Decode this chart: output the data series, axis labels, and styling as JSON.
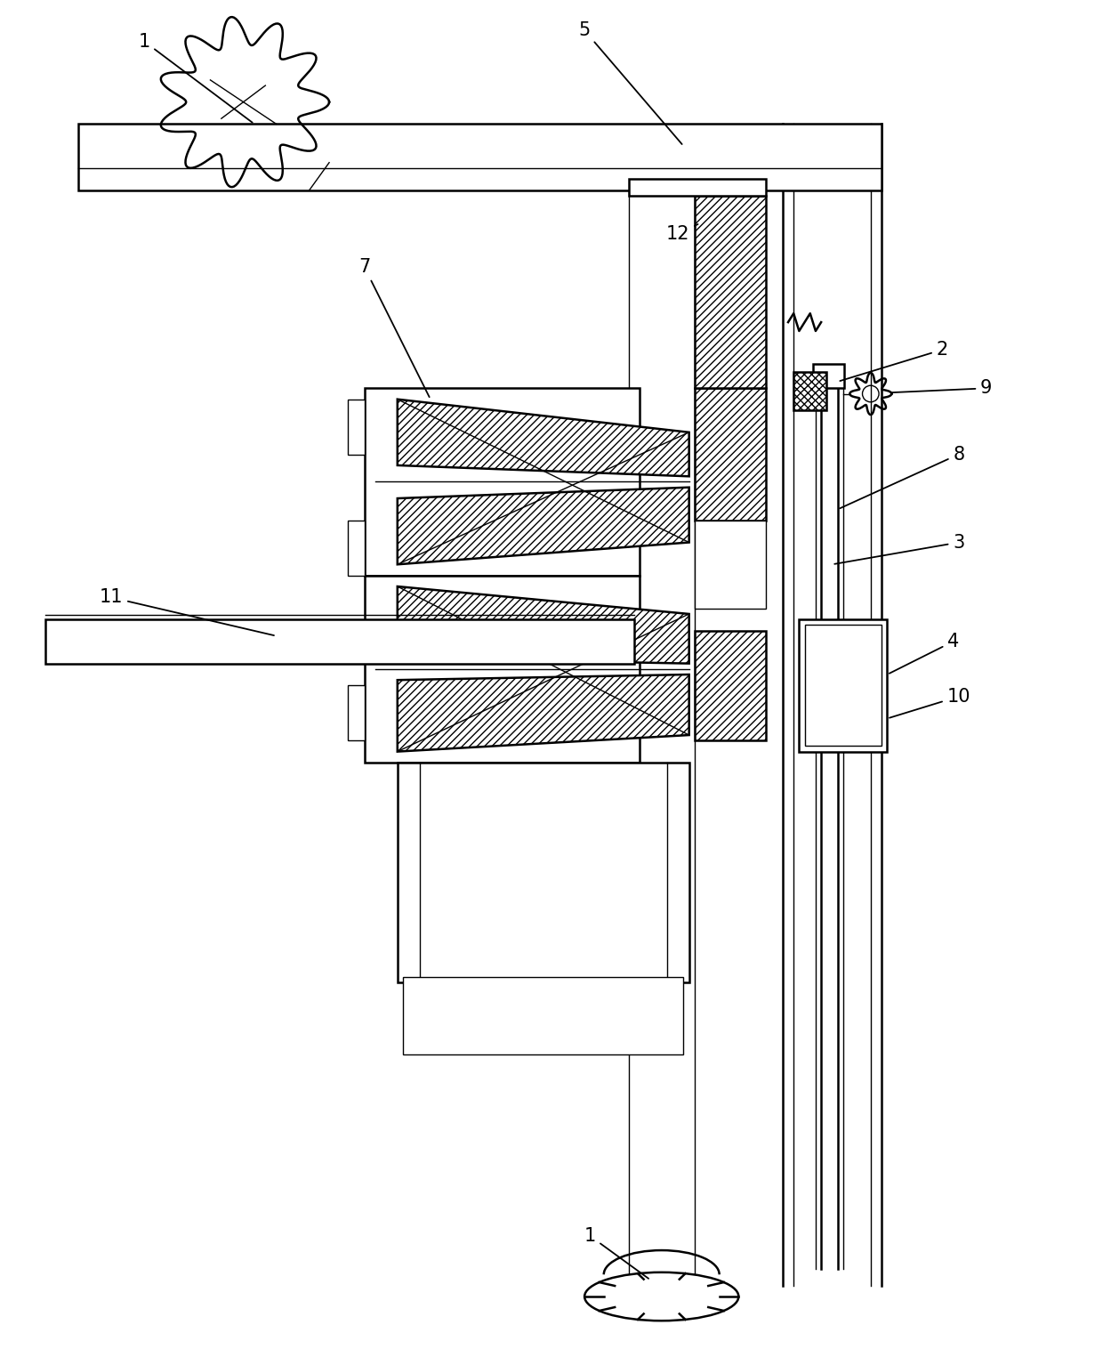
{
  "background": "#ffffff",
  "line_color": "#000000",
  "lw_main": 1.8,
  "lw_thin": 1.0,
  "label_fontsize": 15,
  "fig_w": 12.4,
  "fig_h": 15.16,
  "dpi": 100
}
